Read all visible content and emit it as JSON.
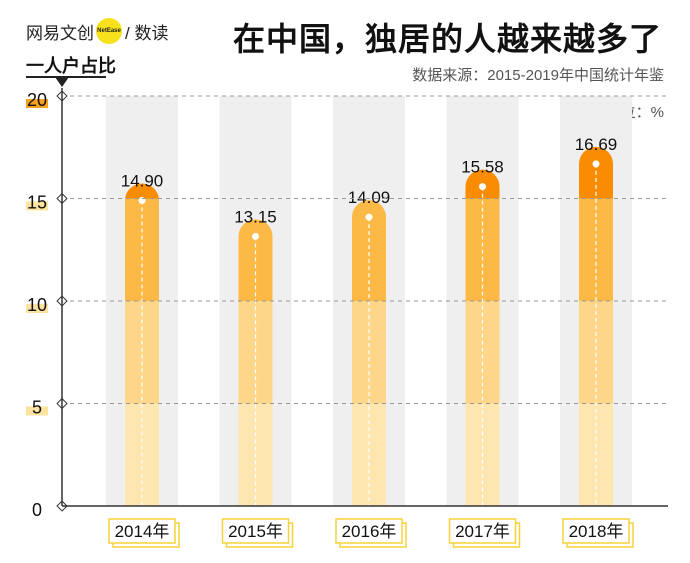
{
  "header": {
    "brand_left": "网易文创",
    "brand_badge": "NetEase",
    "brand_right": "/ 数读",
    "title": "在中国，独居的人越来越多了",
    "source": "数据来源：2015-2019年中国统计年鉴",
    "unit": "单位：%"
  },
  "chart_data": {
    "type": "bar",
    "title": "在中国，独居的人越来越多了",
    "ylabel": "一人户占比",
    "xlabel": "",
    "categories": [
      "2014年",
      "2015年",
      "2016年",
      "2017年",
      "2018年"
    ],
    "values": [
      14.9,
      13.15,
      14.09,
      15.58,
      16.69
    ],
    "value_labels": [
      "14.90",
      "13.15",
      "14.09",
      "15.58",
      "16.69"
    ],
    "ylim": [
      0,
      20
    ],
    "yticks": [
      0,
      5,
      10,
      15,
      20
    ],
    "grid": true,
    "colors": {
      "band_0_5": "#fde6b0",
      "band_5_10": "#fdd68a",
      "band_10_15": "#fcb945",
      "band_15_20": "#f98c00",
      "track": "#efefef",
      "label_box": "#f7d23b",
      "tick_highlight": "#fde3a0",
      "tick_highlight_top": "#f7a21e"
    }
  }
}
